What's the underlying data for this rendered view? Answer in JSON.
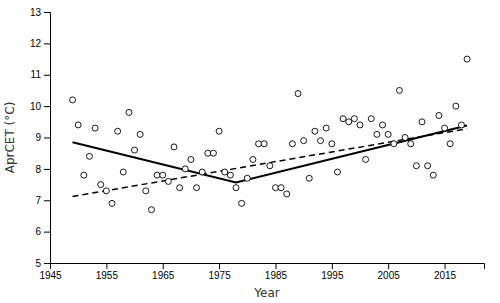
{
  "chart_data": {
    "type": "scatter",
    "xlabel": "Year",
    "ylabel": "AprCET (°C)",
    "xlim": [
      1945,
      2022
    ],
    "ylim": [
      5,
      13
    ],
    "xticks": [
      1945,
      1955,
      1965,
      1975,
      1985,
      1995,
      2005,
      2015
    ],
    "yticks": [
      5,
      6,
      7,
      8,
      9,
      10,
      11,
      12,
      13
    ],
    "grid": false,
    "series": [
      {
        "type": "scatter",
        "color": "black",
        "marker": "open-circle",
        "x": [
          1949,
          1950,
          1951,
          1952,
          1953,
          1954,
          1955,
          1956,
          1957,
          1958,
          1959,
          1960,
          1961,
          1962,
          1963,
          1964,
          1965,
          1966,
          1967,
          1968,
          1969,
          1970,
          1971,
          1972,
          1973,
          1974,
          1975,
          1976,
          1977,
          1978,
          1979,
          1980,
          1981,
          1982,
          1983,
          1984,
          1985,
          1986,
          1987,
          1988,
          1989,
          1990,
          1991,
          1992,
          1993,
          1994,
          1995,
          1996,
          1997,
          1998,
          1999,
          2000,
          2001,
          2002,
          2003,
          2004,
          2005,
          2006,
          2007,
          2008,
          2009,
          2010,
          2011,
          2012,
          2013,
          2014,
          2015,
          2016,
          2017,
          2018,
          2019
        ],
        "values": [
          10.2,
          9.4,
          7.8,
          8.4,
          9.3,
          7.5,
          7.3,
          6.9,
          9.2,
          7.9,
          9.8,
          8.6,
          9.1,
          7.3,
          6.7,
          7.8,
          7.8,
          7.6,
          8.7,
          7.4,
          8.0,
          8.3,
          7.4,
          7.9,
          8.5,
          8.5,
          9.2,
          7.9,
          7.8,
          7.4,
          6.9,
          7.7,
          8.3,
          8.8,
          8.8,
          8.1,
          7.4,
          7.4,
          7.2,
          8.8,
          10.4,
          8.9,
          7.7,
          9.2,
          8.9,
          9.3,
          8.8,
          7.9,
          9.6,
          9.5,
          9.6,
          9.4,
          8.3,
          9.6,
          9.1,
          9.4,
          9.1,
          8.8,
          10.5,
          9.0,
          8.8,
          8.1,
          9.5,
          8.1,
          7.8,
          9.7,
          9.3,
          8.8,
          10.0,
          9.4,
          11.5
        ]
      },
      {
        "type": "line",
        "color": "black",
        "line_style": "dashed",
        "x": [
          1949,
          2019
        ],
        "values": [
          7.12,
          9.28
        ]
      },
      {
        "type": "line",
        "color": "black",
        "line_style": "solid",
        "x": [
          1949,
          1978,
          2019
        ],
        "values": [
          8.85,
          7.57,
          9.38
        ]
      }
    ]
  }
}
